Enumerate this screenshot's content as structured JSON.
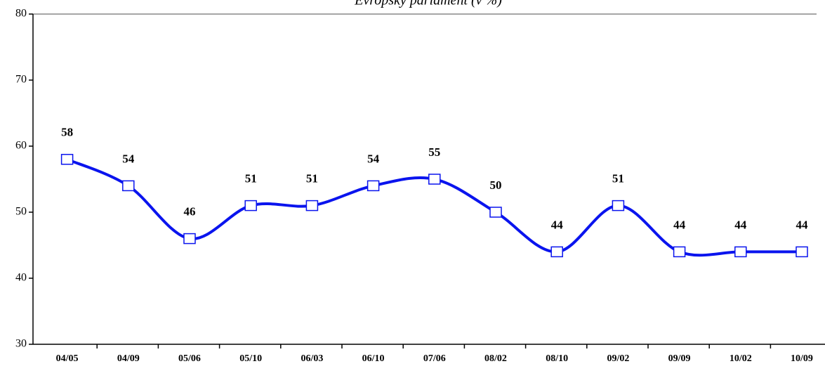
{
  "chart_data": {
    "type": "line",
    "title": "Evropský parlament (v %)",
    "categories": [
      "04/05",
      "04/09",
      "05/06",
      "05/10",
      "06/03",
      "06/10",
      "07/06",
      "08/02",
      "08/10",
      "09/02",
      "09/09",
      "10/02",
      "10/09"
    ],
    "series": [
      {
        "name": "Evropský parlament",
        "color": "#0a14ee",
        "values": [
          58,
          54,
          46,
          51,
          51,
          54,
          55,
          50,
          44,
          51,
          44,
          44,
          44
        ]
      }
    ],
    "ylim": [
      30,
      80
    ],
    "yticks": [
      30,
      40,
      50,
      60,
      70,
      80
    ]
  }
}
